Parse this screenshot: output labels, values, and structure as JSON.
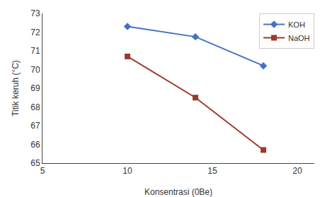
{
  "chart_data": {
    "type": "line",
    "xlabel": "Konsentrasi (0Be)",
    "ylabel": "Titik keruh (°C)",
    "x": [
      10,
      14,
      18
    ],
    "series": [
      {
        "name": "KOH",
        "color": "#4472C4",
        "marker": "diamond",
        "values": [
          72.3,
          71.75,
          70.2
        ]
      },
      {
        "name": "NaOH",
        "color": "#9B3A2A",
        "marker": "square",
        "values": [
          70.7,
          68.5,
          65.7
        ]
      }
    ],
    "xlim": [
      5,
      21
    ],
    "xticks": [
      5,
      10,
      15,
      20
    ],
    "ylim": [
      65,
      73
    ],
    "yticks": [
      65,
      66,
      67,
      68,
      69,
      70,
      71,
      72,
      73
    ],
    "grid": false,
    "legend": "upper right"
  }
}
